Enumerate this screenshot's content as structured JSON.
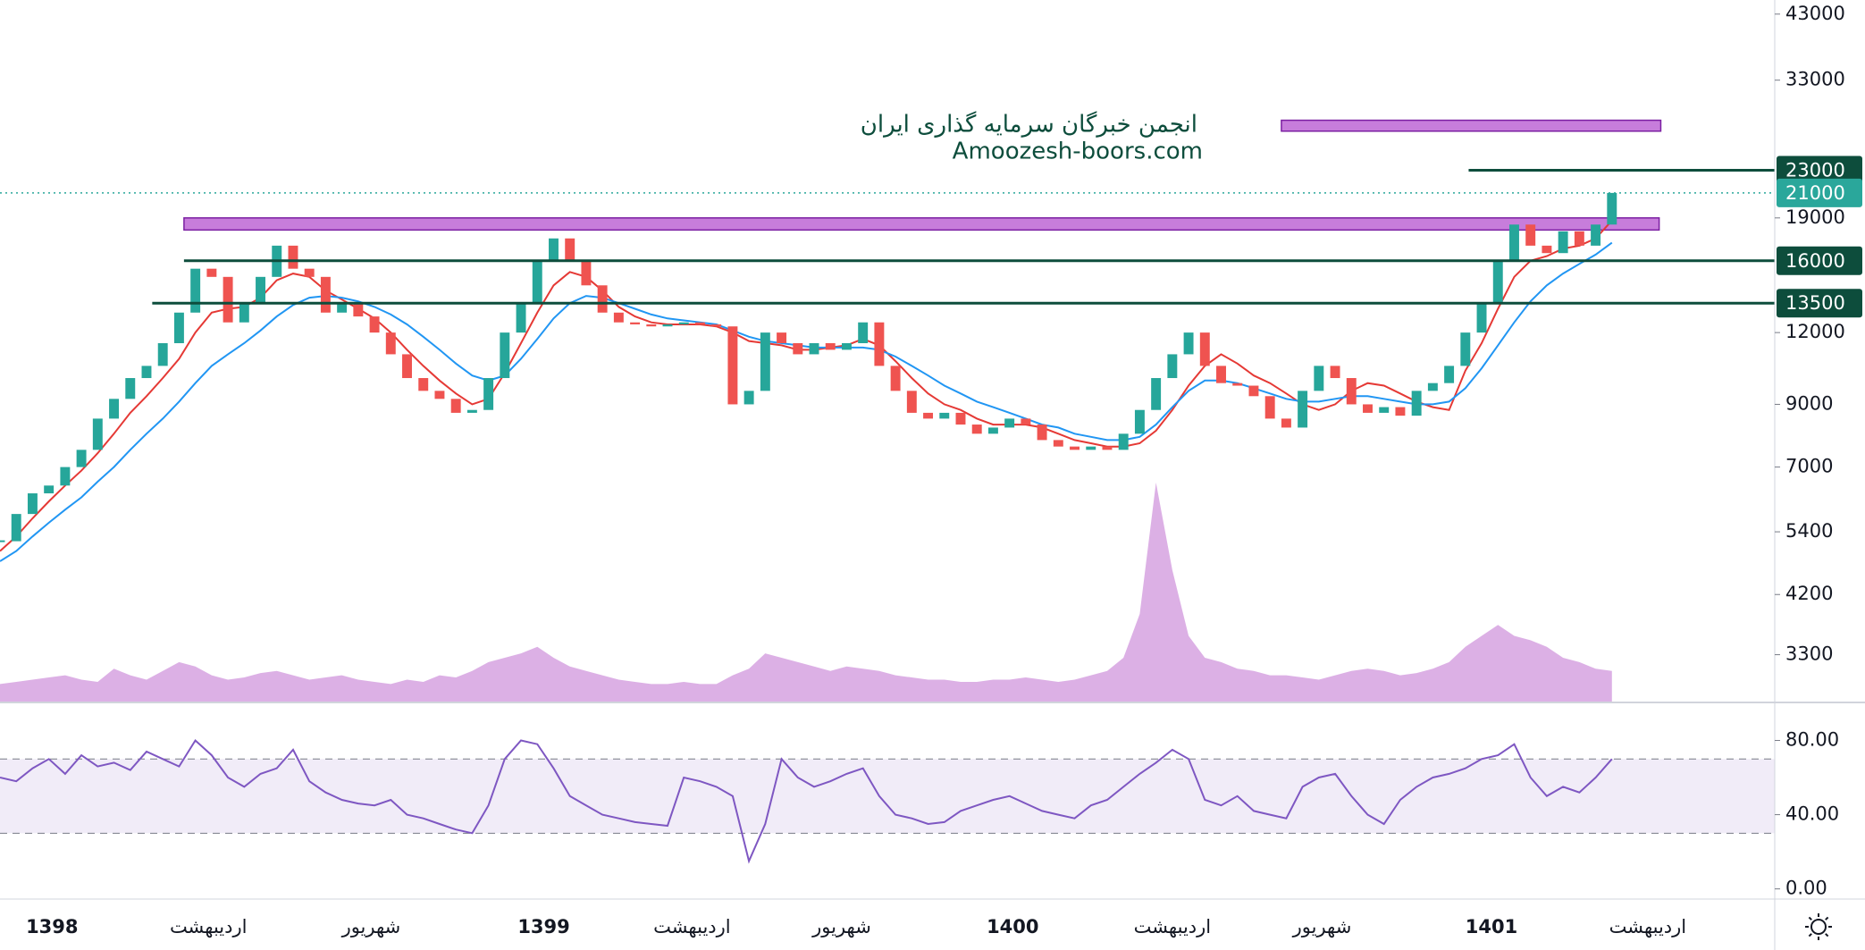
{
  "chart_data": {
    "type": "candlestick",
    "scale": "log",
    "xlim": [
      0,
      109
    ],
    "xticks": [
      {
        "value": 3.2,
        "label": "1398"
      },
      {
        "value": 12.8,
        "label": "اردیبهشت"
      },
      {
        "value": 22.8,
        "label": "شهریور"
      },
      {
        "value": 33.4,
        "label": "1399"
      },
      {
        "value": 42.5,
        "label": "اردیبهشت"
      },
      {
        "value": 51.7,
        "label": "شهریور"
      },
      {
        "value": 62.2,
        "label": "1400"
      },
      {
        "value": 72,
        "label": "اردیبهشت"
      },
      {
        "value": 81.2,
        "label": "شهریور"
      },
      {
        "value": 91.6,
        "label": "1401"
      },
      {
        "value": 101.2,
        "label": "اردیبهشت"
      }
    ],
    "ylim": [
      2735,
      45500
    ],
    "yticks": [
      43000,
      33000,
      19000,
      12000,
      9000,
      7000,
      5400,
      4200,
      3300
    ],
    "up_color": "#26a69a",
    "down_color": "#ef5350",
    "close": [
      5200,
      5800,
      6300,
      6500,
      7000,
      7500,
      8500,
      9200,
      10000,
      10500,
      11500,
      13000,
      15500,
      15000,
      12500,
      13500,
      15000,
      17000,
      15500,
      15000,
      13000,
      13500,
      12800,
      12000,
      11000,
      10000,
      9500,
      9200,
      8700,
      8800,
      10000,
      12000,
      13500,
      16000,
      17500,
      16000,
      14500,
      13000,
      12500,
      12400,
      12300,
      12400,
      12500,
      12400,
      12300,
      9000,
      9500,
      12000,
      11500,
      11000,
      11500,
      11200,
      11500,
      12500,
      10500,
      9500,
      8700,
      8500,
      8700,
      8300,
      8000,
      8200,
      8500,
      8300,
      7800,
      7600,
      7500,
      7600,
      7500,
      8000,
      8800,
      10000,
      11000,
      12000,
      10500,
      9800,
      9700,
      9300,
      8500,
      8200,
      9500,
      10500,
      10000,
      9000,
      8700,
      8900,
      8600,
      9500,
      9800,
      10500,
      12000,
      13500,
      16000,
      18500,
      17000,
      16500,
      18000,
      17000,
      18500,
      21000
    ],
    "ma_fast": {
      "color": "#e53935",
      "values": [
        5000,
        5300,
        5700,
        6100,
        6500,
        6900,
        7400,
        8000,
        8700,
        9300,
        10000,
        10800,
        12000,
        13000,
        13200,
        13300,
        13800,
        14800,
        15200,
        15000,
        14200,
        13700,
        13200,
        12700,
        12000,
        11200,
        10500,
        9900,
        9400,
        9000,
        9200,
        10200,
        11500,
        13000,
        14500,
        15300,
        15000,
        14200,
        13300,
        12800,
        12500,
        12400,
        12400,
        12400,
        12300,
        12000,
        11600,
        11500,
        11400,
        11200,
        11200,
        11300,
        11400,
        11700,
        11400,
        10700,
        10000,
        9400,
        9000,
        8800,
        8500,
        8300,
        8300,
        8300,
        8200,
        8000,
        7800,
        7700,
        7600,
        7600,
        7700,
        8100,
        8800,
        9700,
        10500,
        11000,
        10600,
        10100,
        9800,
        9400,
        9000,
        8800,
        9000,
        9500,
        9800,
        9700,
        9400,
        9100,
        8900,
        8800,
        10300,
        11500,
        13200,
        15000,
        16000,
        16300,
        16800,
        17000,
        17500,
        18800
      ]
    },
    "ma_slow": {
      "color": "#2196f3",
      "values": [
        4800,
        5000,
        5300,
        5600,
        5900,
        6200,
        6600,
        7000,
        7500,
        8000,
        8500,
        9100,
        9800,
        10500,
        11000,
        11500,
        12100,
        12800,
        13400,
        13800,
        13900,
        13800,
        13600,
        13300,
        12900,
        12400,
        11800,
        11200,
        10600,
        10100,
        9900,
        10100,
        10800,
        11700,
        12700,
        13500,
        13900,
        13800,
        13500,
        13200,
        12900,
        12700,
        12600,
        12500,
        12400,
        12100,
        11800,
        11600,
        11500,
        11400,
        11300,
        11300,
        11300,
        11300,
        11200,
        10900,
        10500,
        10100,
        9700,
        9400,
        9100,
        8900,
        8700,
        8500,
        8300,
        8200,
        8000,
        7900,
        7800,
        7800,
        7900,
        8300,
        8900,
        9500,
        9900,
        9900,
        9800,
        9600,
        9400,
        9200,
        9100,
        9100,
        9200,
        9300,
        9300,
        9200,
        9100,
        9000,
        9000,
        9100,
        9600,
        10400,
        11400,
        12500,
        13600,
        14500,
        15200,
        15800,
        16400,
        17200
      ]
    },
    "volume": {
      "color": "#c06fd0",
      "values": [
        8,
        9,
        10,
        11,
        12,
        10,
        9,
        15,
        12,
        10,
        14,
        18,
        16,
        12,
        10,
        11,
        13,
        14,
        12,
        10,
        11,
        12,
        10,
        9,
        8,
        10,
        9,
        12,
        11,
        14,
        18,
        20,
        22,
        25,
        20,
        16,
        14,
        12,
        10,
        9,
        8,
        8,
        9,
        8,
        8,
        12,
        15,
        22,
        20,
        18,
        16,
        14,
        16,
        15,
        14,
        12,
        11,
        10,
        10,
        9,
        9,
        10,
        10,
        11,
        10,
        9,
        10,
        12,
        14,
        20,
        40,
        100,
        60,
        30,
        20,
        18,
        15,
        14,
        12,
        12,
        11,
        10,
        12,
        14,
        15,
        14,
        12,
        13,
        15,
        18,
        25,
        30,
        35,
        30,
        28,
        25,
        20,
        18,
        15,
        14
      ]
    },
    "levels": [
      {
        "value": 23000,
        "from": 90.2
      },
      {
        "value": 16000,
        "from": 11.3
      },
      {
        "value": 13500,
        "from": 9.35
      }
    ],
    "level_color": "#0d4d3c",
    "last_price_color": "#2aa79b",
    "zones": [
      {
        "low": 18100,
        "high": 19000,
        "from": 11.3,
        "to": 101.9
      },
      {
        "low": 26900,
        "high": 28100,
        "from": 78.7,
        "to": 102
      }
    ],
    "zone_color": "#c77ddb",
    "watermark": [
      "انجمن خبرگان سرمایه گذاری ایران",
      "Amoozesh-boors.com"
    ],
    "rsi": {
      "color": "#7e57c2",
      "ylim": [
        -5,
        100
      ],
      "yticks": [
        {
          "value": 80,
          "label": "80.00"
        },
        {
          "value": 40,
          "label": "40.00"
        },
        {
          "value": 0,
          "label": "0.00"
        }
      ],
      "band": [
        30,
        70
      ],
      "values": [
        60,
        58,
        65,
        70,
        62,
        72,
        66,
        68,
        64,
        74,
        70,
        66,
        80,
        72,
        60,
        55,
        62,
        65,
        75,
        58,
        52,
        48,
        46,
        45,
        48,
        40,
        38,
        35,
        32,
        30,
        45,
        70,
        80,
        78,
        65,
        50,
        45,
        40,
        38,
        36,
        35,
        34,
        60,
        58,
        55,
        50,
        15,
        35,
        70,
        60,
        55,
        58,
        62,
        65,
        50,
        40,
        38,
        35,
        36,
        42,
        45,
        48,
        50,
        46,
        42,
        40,
        38,
        45,
        48,
        55,
        62,
        68,
        75,
        70,
        48,
        45,
        50,
        42,
        40,
        38,
        55,
        60,
        62,
        50,
        40,
        35,
        48,
        55,
        60,
        62,
        65,
        70,
        72,
        78,
        60,
        50,
        55,
        52,
        60,
        70
      ]
    }
  }
}
